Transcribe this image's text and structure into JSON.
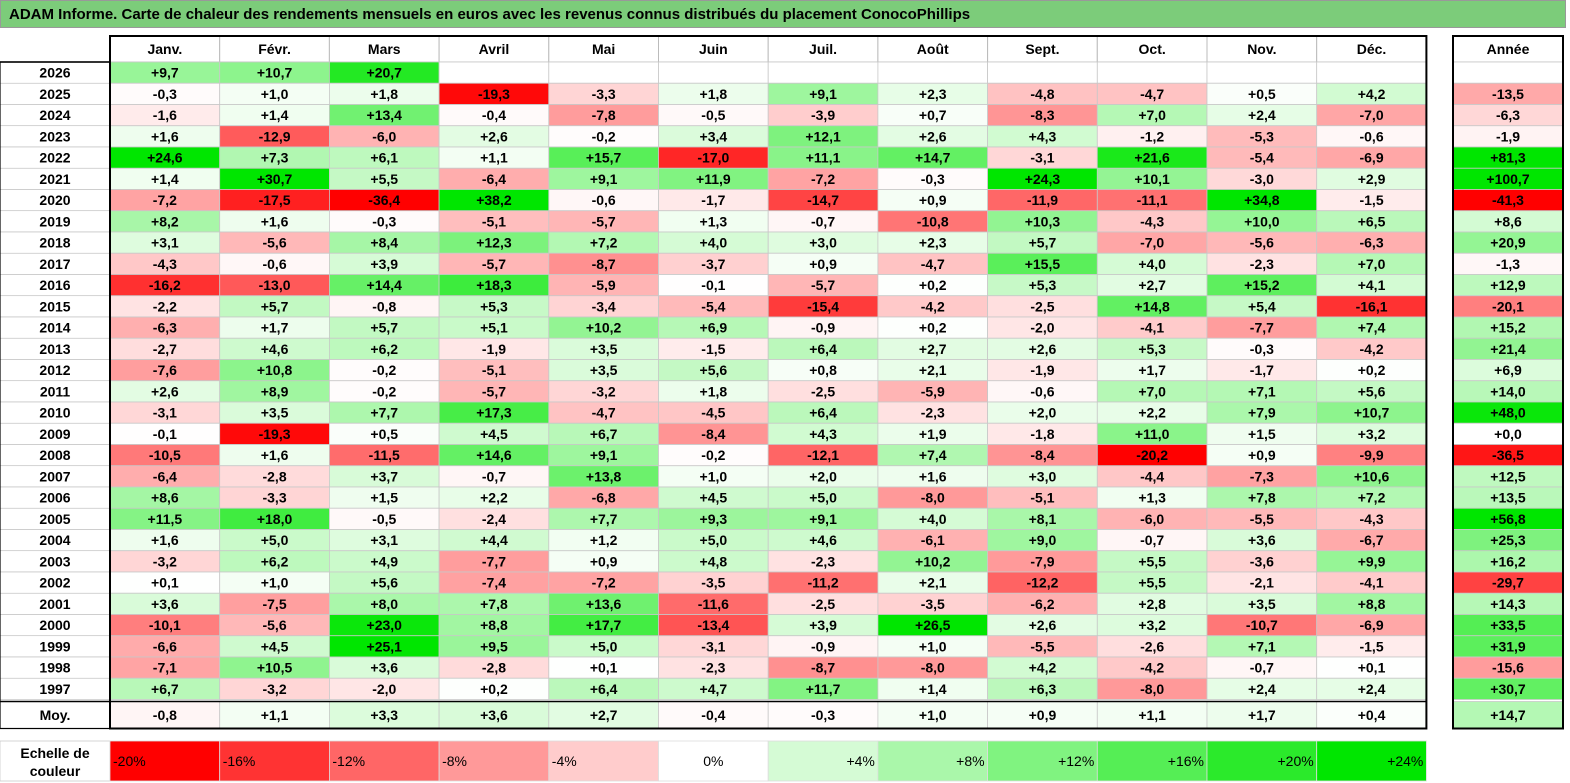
{
  "title": "ADAM Informe. Carte de chaleur des rendements mensuels en euros avec les revenus connus distribués du placement ConocoPhillips",
  "chart_data": {
    "type": "heatmap",
    "columns": [
      "Janv.",
      "Févr.",
      "Mars",
      "Avril",
      "Mai",
      "Juin",
      "Juil.",
      "Août",
      "Sept.",
      "Oct.",
      "Nov.",
      "Déc."
    ],
    "year_column": "Année",
    "rows": [
      {
        "label": "2026",
        "months": [
          "+9,7",
          "+10,7",
          "+20,7",
          "",
          "",
          "",
          "",
          "",
          "",
          "",
          "",
          ""
        ],
        "year": ""
      },
      {
        "label": "2025",
        "months": [
          "-0,3",
          "+1,0",
          "+1,8",
          "-19,3",
          "-3,3",
          "+1,8",
          "+9,1",
          "+2,3",
          "-4,8",
          "-4,7",
          "+0,5",
          "+4,2"
        ],
        "year": "-13,5"
      },
      {
        "label": "2024",
        "months": [
          "-1,6",
          "+1,4",
          "+13,4",
          "-0,4",
          "-7,8",
          "-0,5",
          "-3,9",
          "+0,7",
          "-8,3",
          "+7,0",
          "+2,4",
          "-7,0"
        ],
        "year": "-6,3"
      },
      {
        "label": "2023",
        "months": [
          "+1,6",
          "-12,9",
          "-6,0",
          "+2,6",
          "-0,2",
          "+3,4",
          "+12,1",
          "+2,6",
          "+4,3",
          "-1,2",
          "-5,3",
          "-0,6"
        ],
        "year": "-1,9"
      },
      {
        "label": "2022",
        "months": [
          "+24,6",
          "+7,3",
          "+6,1",
          "+1,1",
          "+15,7",
          "-17,0",
          "+11,1",
          "+14,7",
          "-3,1",
          "+21,6",
          "-5,4",
          "-6,9"
        ],
        "year": "+81,3"
      },
      {
        "label": "2021",
        "months": [
          "+1,4",
          "+30,7",
          "+5,5",
          "-6,4",
          "+9,1",
          "+11,9",
          "-7,2",
          "-0,3",
          "+24,3",
          "+10,1",
          "-3,0",
          "+2,9"
        ],
        "year": "+100,7"
      },
      {
        "label": "2020",
        "months": [
          "-7,2",
          "-17,5",
          "-36,4",
          "+38,2",
          "-0,6",
          "-1,7",
          "-14,7",
          "+0,9",
          "-11,9",
          "-11,1",
          "+34,8",
          "-1,5"
        ],
        "year": "-41,3"
      },
      {
        "label": "2019",
        "months": [
          "+8,2",
          "+1,6",
          "-0,3",
          "-5,1",
          "-5,7",
          "+1,3",
          "-0,7",
          "-10,8",
          "+10,3",
          "-4,3",
          "+10,0",
          "+6,5"
        ],
        "year": "+8,6"
      },
      {
        "label": "2018",
        "months": [
          "+3,1",
          "-5,6",
          "+8,4",
          "+12,3",
          "+7,2",
          "+4,0",
          "+3,0",
          "+2,3",
          "+5,7",
          "-7,0",
          "-5,6",
          "-6,3"
        ],
        "year": "+20,9"
      },
      {
        "label": "2017",
        "months": [
          "-4,3",
          "-0,6",
          "+3,9",
          "-5,7",
          "-8,7",
          "-3,7",
          "+0,9",
          "-4,7",
          "+15,5",
          "+4,0",
          "-2,3",
          "+7,0"
        ],
        "year": "-1,3"
      },
      {
        "label": "2016",
        "months": [
          "-16,2",
          "-13,0",
          "+14,4",
          "+18,3",
          "-5,9",
          "-0,1",
          "-5,7",
          "+0,2",
          "+5,3",
          "+2,7",
          "+15,2",
          "+4,1"
        ],
        "year": "+12,9"
      },
      {
        "label": "2015",
        "months": [
          "-2,2",
          "+5,7",
          "-0,8",
          "+5,3",
          "-3,4",
          "-5,4",
          "-15,4",
          "-4,2",
          "-2,5",
          "+14,8",
          "+5,4",
          "-16,1"
        ],
        "year": "-20,1"
      },
      {
        "label": "2014",
        "months": [
          "-6,3",
          "+1,7",
          "+5,7",
          "+5,1",
          "+10,2",
          "+6,9",
          "-0,9",
          "+0,2",
          "-2,0",
          "-4,1",
          "-7,7",
          "+7,4"
        ],
        "year": "+15,2"
      },
      {
        "label": "2013",
        "months": [
          "-2,7",
          "+4,6",
          "+6,2",
          "-1,9",
          "+3,5",
          "-1,5",
          "+6,4",
          "+2,7",
          "+2,6",
          "+5,3",
          "-0,3",
          "-4,2"
        ],
        "year": "+21,4"
      },
      {
        "label": "2012",
        "months": [
          "-7,6",
          "+10,8",
          "-0,2",
          "-5,1",
          "+3,5",
          "+5,6",
          "+0,8",
          "+2,1",
          "-1,9",
          "+1,7",
          "-1,7",
          "+0,2"
        ],
        "year": "+6,9"
      },
      {
        "label": "2011",
        "months": [
          "+2,6",
          "+8,9",
          "-0,2",
          "-5,7",
          "-3,2",
          "+1,8",
          "-2,5",
          "-5,9",
          "-0,6",
          "+7,0",
          "+7,1",
          "+5,6"
        ],
        "year": "+14,0"
      },
      {
        "label": "2010",
        "months": [
          "-3,1",
          "+3,5",
          "+7,7",
          "+17,3",
          "-4,7",
          "-4,5",
          "+6,4",
          "-2,3",
          "+2,0",
          "+2,2",
          "+7,9",
          "+10,7"
        ],
        "year": "+48,0"
      },
      {
        "label": "2009",
        "months": [
          "-0,1",
          "-19,3",
          "+0,5",
          "+4,5",
          "+6,7",
          "-8,4",
          "+4,3",
          "+1,9",
          "-1,8",
          "+11,0",
          "+1,5",
          "+3,2"
        ],
        "year": "+0,0"
      },
      {
        "label": "2008",
        "months": [
          "-10,5",
          "+1,6",
          "-11,5",
          "+14,6",
          "+9,1",
          "-0,2",
          "-12,1",
          "+7,4",
          "-8,4",
          "-20,2",
          "+0,9",
          "-9,9"
        ],
        "year": "-36,5"
      },
      {
        "label": "2007",
        "months": [
          "-6,4",
          "-2,8",
          "+3,7",
          "-0,7",
          "+13,8",
          "+1,0",
          "+2,0",
          "+1,6",
          "+3,0",
          "-4,4",
          "-7,3",
          "+10,6"
        ],
        "year": "+12,5"
      },
      {
        "label": "2006",
        "months": [
          "+8,6",
          "-3,3",
          "+1,5",
          "+2,2",
          "-6,8",
          "+4,5",
          "+5,0",
          "-8,0",
          "-5,1",
          "+1,3",
          "+7,8",
          "+7,2"
        ],
        "year": "+13,5"
      },
      {
        "label": "2005",
        "months": [
          "+11,5",
          "+18,0",
          "-0,5",
          "-2,4",
          "+7,7",
          "+9,3",
          "+9,1",
          "+4,0",
          "+8,1",
          "-6,0",
          "-5,5",
          "-4,3"
        ],
        "year": "+56,8"
      },
      {
        "label": "2004",
        "months": [
          "+1,6",
          "+5,0",
          "+3,1",
          "+4,4",
          "+1,2",
          "+5,0",
          "+4,6",
          "-6,1",
          "+9,0",
          "-0,7",
          "+3,6",
          "-6,7"
        ],
        "year": "+25,3"
      },
      {
        "label": "2003",
        "months": [
          "-3,2",
          "+6,2",
          "+4,9",
          "-7,7",
          "+0,9",
          "+4,8",
          "-2,3",
          "+10,2",
          "-7,9",
          "+5,5",
          "-3,6",
          "+9,9"
        ],
        "year": "+16,2"
      },
      {
        "label": "2002",
        "months": [
          "+0,1",
          "+1,0",
          "+5,6",
          "-7,4",
          "-7,2",
          "-3,5",
          "-11,2",
          "+2,1",
          "-12,2",
          "+5,5",
          "-2,1",
          "-4,1"
        ],
        "year": "-29,7"
      },
      {
        "label": "2001",
        "months": [
          "+3,6",
          "-7,5",
          "+8,0",
          "+7,8",
          "+13,6",
          "-11,6",
          "-2,5",
          "-3,5",
          "-6,2",
          "+2,8",
          "+3,5",
          "+8,8"
        ],
        "year": "+14,3"
      },
      {
        "label": "2000",
        "months": [
          "-10,1",
          "-5,6",
          "+23,0",
          "+8,8",
          "+17,7",
          "-13,4",
          "+3,9",
          "+26,5",
          "+2,6",
          "+3,2",
          "-10,7",
          "-6,9"
        ],
        "year": "+33,5"
      },
      {
        "label": "1999",
        "months": [
          "-6,6",
          "+4,5",
          "+25,1",
          "+9,5",
          "+5,0",
          "-3,1",
          "-0,9",
          "+1,0",
          "-5,5",
          "-2,6",
          "+7,1",
          "-1,5"
        ],
        "year": "+31,9"
      },
      {
        "label": "1998",
        "months": [
          "-7,1",
          "+10,5",
          "+3,6",
          "-2,8",
          "+0,1",
          "-2,3",
          "-8,7",
          "-8,0",
          "+4,2",
          "-4,2",
          "-0,7",
          "+0,1"
        ],
        "year": "-15,6"
      },
      {
        "label": "1997",
        "months": [
          "+6,7",
          "-3,2",
          "-2,0",
          "+0,2",
          "+6,4",
          "+4,7",
          "+11,7",
          "+1,4",
          "+6,3",
          "-8,0",
          "+2,4",
          "+2,4"
        ],
        "year": "+30,7"
      }
    ],
    "average_row": {
      "label": "Moy.",
      "months": [
        "-0,8",
        "+1,1",
        "+3,3",
        "+3,6",
        "+2,7",
        "-0,4",
        "-0,3",
        "+1,0",
        "+0,9",
        "+1,1",
        "+1,7",
        "+0,4"
      ],
      "year": "+14,7"
    },
    "legend": {
      "title_line1": "Echelle de",
      "title_line2": "couleur",
      "steps": [
        "-20%",
        "-16%",
        "-12%",
        "-8%",
        "-4%",
        "0%",
        "+4%",
        "+8%",
        "+12%",
        "+16%",
        "+20%",
        "+24%"
      ],
      "step_values": [
        -20,
        -16,
        -12,
        -8,
        -4,
        0,
        4,
        8,
        12,
        16,
        20,
        24
      ]
    },
    "colors": {
      "negative_max": "#ff0000",
      "neutral": "#ffffff",
      "positive_max": "#00e600",
      "title_bg": "#7ccc7a"
    }
  }
}
